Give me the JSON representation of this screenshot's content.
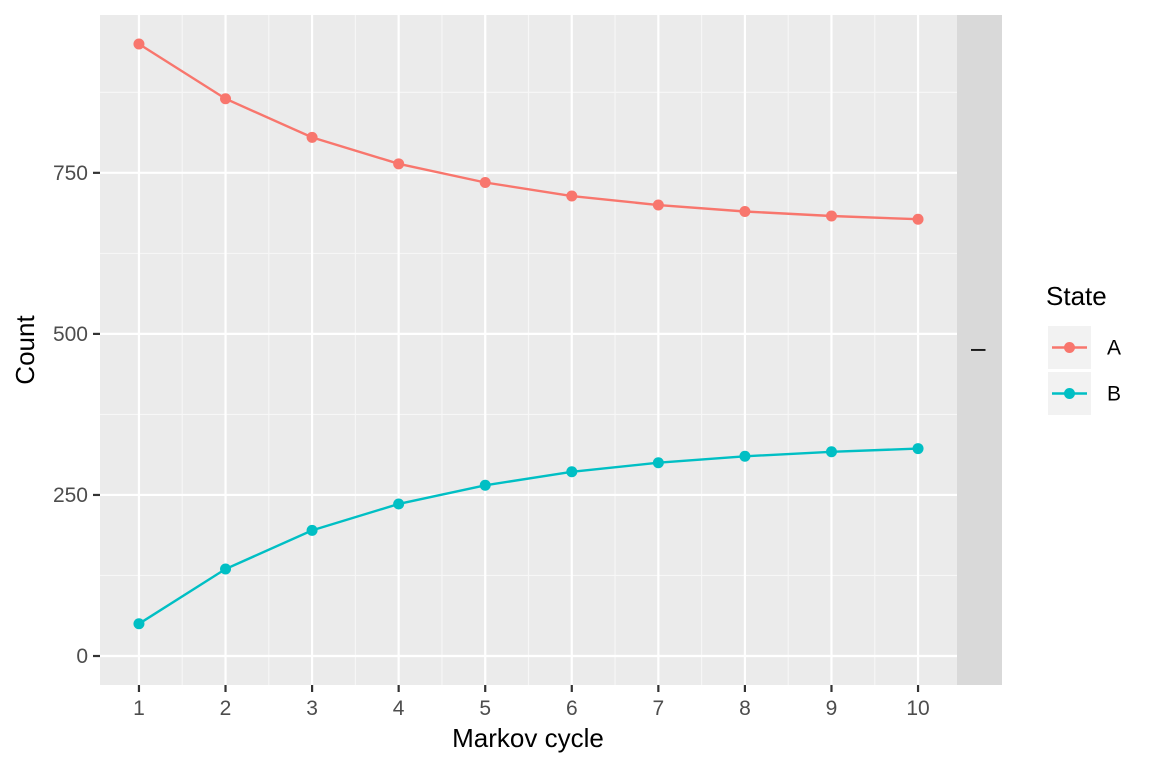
{
  "chart_data": {
    "type": "line",
    "title": "",
    "xlabel": "Markov cycle",
    "ylabel": "Count",
    "x": [
      1,
      2,
      3,
      4,
      5,
      6,
      7,
      8,
      9,
      10
    ],
    "x_ticks": [
      "1",
      "2",
      "3",
      "4",
      "5",
      "6",
      "7",
      "8",
      "9",
      "10"
    ],
    "y_ticks": [
      "0",
      "250",
      "500",
      "750"
    ],
    "xlim": [
      0.55,
      10.45
    ],
    "ylim": [
      -45,
      995
    ],
    "grid": true,
    "facet_strip_label": "I",
    "series": [
      {
        "name": "A",
        "color": "#F8766D",
        "values": [
          950,
          865,
          805,
          764,
          735,
          714,
          700,
          690,
          683,
          678
        ]
      },
      {
        "name": "B",
        "color": "#00BFC4",
        "values": [
          50,
          135,
          195,
          236,
          265,
          286,
          300,
          310,
          317,
          322
        ]
      }
    ],
    "legend": {
      "title": "State",
      "placement": "right",
      "entries": [
        "A",
        "B"
      ]
    }
  }
}
